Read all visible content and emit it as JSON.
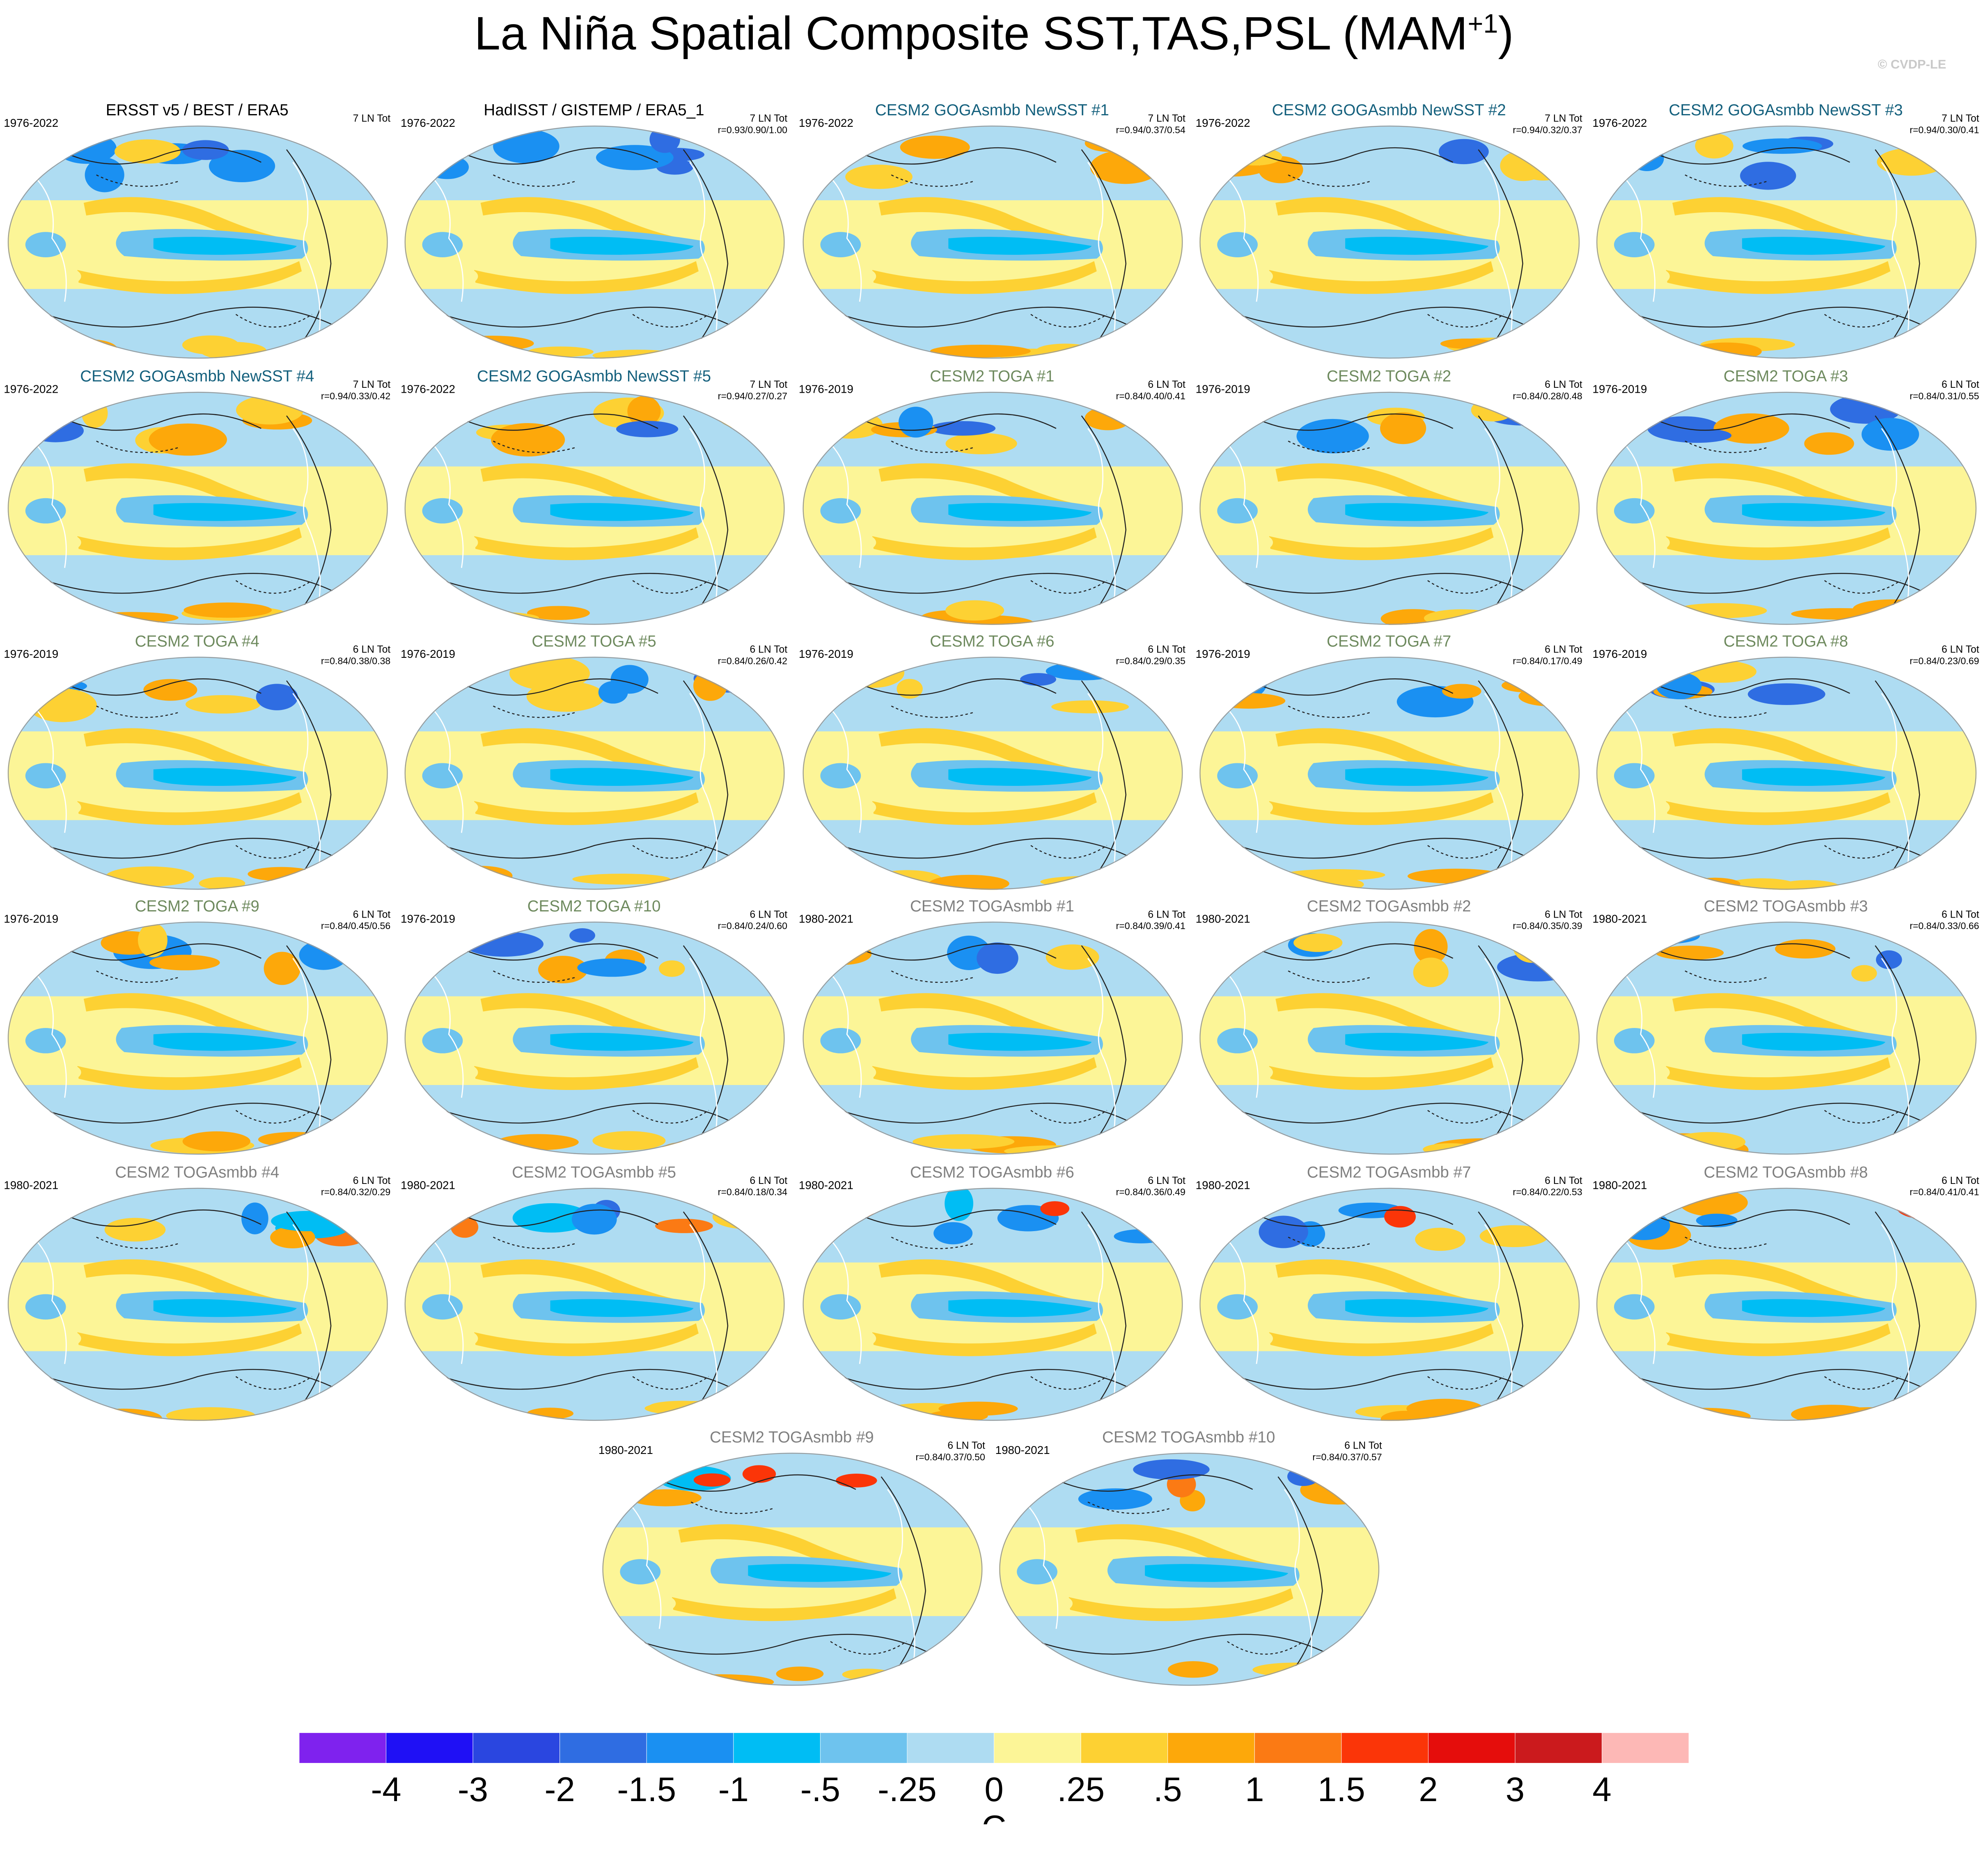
{
  "title": {
    "main": "La Niña Spatial Composite SST,TAS,PSL (MAM",
    "sup": "+1",
    "close": ")"
  },
  "credit": "© CVDP-LE",
  "panels": [
    {
      "title": "ERSST v5 / BEST / ERA5",
      "color": "#000000",
      "period": "1976-2022",
      "ntot": "7 LN Tot",
      "r": ""
    },
    {
      "title": "HadISST / GISTEMP / ERA5_1",
      "color": "#000000",
      "period": "1976-2022",
      "ntot": "7 LN Tot",
      "r": "r=0.93/0.90/1.00"
    },
    {
      "title": "CESM2 GOGAsmbb NewSST #1",
      "color": "#14607d",
      "period": "1976-2022",
      "ntot": "7 LN Tot",
      "r": "r=0.94/0.37/0.54"
    },
    {
      "title": "CESM2 GOGAsmbb NewSST #2",
      "color": "#14607d",
      "period": "1976-2022",
      "ntot": "7 LN Tot",
      "r": "r=0.94/0.32/0.37"
    },
    {
      "title": "CESM2 GOGAsmbb NewSST #3",
      "color": "#14607d",
      "period": "1976-2022",
      "ntot": "7 LN Tot",
      "r": "r=0.94/0.30/0.41"
    },
    {
      "title": "CESM2 GOGAsmbb NewSST #4",
      "color": "#14607d",
      "period": "1976-2022",
      "ntot": "7 LN Tot",
      "r": "r=0.94/0.33/0.42"
    },
    {
      "title": "CESM2 GOGAsmbb NewSST #5",
      "color": "#14607d",
      "period": "1976-2022",
      "ntot": "7 LN Tot",
      "r": "r=0.94/0.27/0.27"
    },
    {
      "title": "CESM2 TOGA #1",
      "color": "#6e8a5e",
      "period": "1976-2019",
      "ntot": "6 LN Tot",
      "r": "r=0.84/0.40/0.41"
    },
    {
      "title": "CESM2 TOGA #2",
      "color": "#6e8a5e",
      "period": "1976-2019",
      "ntot": "6 LN Tot",
      "r": "r=0.84/0.28/0.48"
    },
    {
      "title": "CESM2 TOGA #3",
      "color": "#6e8a5e",
      "period": "1976-2019",
      "ntot": "6 LN Tot",
      "r": "r=0.84/0.31/0.55"
    },
    {
      "title": "CESM2 TOGA #4",
      "color": "#6e8a5e",
      "period": "1976-2019",
      "ntot": "6 LN Tot",
      "r": "r=0.84/0.38/0.38"
    },
    {
      "title": "CESM2 TOGA #5",
      "color": "#6e8a5e",
      "period": "1976-2019",
      "ntot": "6 LN Tot",
      "r": "r=0.84/0.26/0.42"
    },
    {
      "title": "CESM2 TOGA #6",
      "color": "#6e8a5e",
      "period": "1976-2019",
      "ntot": "6 LN Tot",
      "r": "r=0.84/0.29/0.35"
    },
    {
      "title": "CESM2 TOGA #7",
      "color": "#6e8a5e",
      "period": "1976-2019",
      "ntot": "6 LN Tot",
      "r": "r=0.84/0.17/0.49"
    },
    {
      "title": "CESM2 TOGA #8",
      "color": "#6e8a5e",
      "period": "1976-2019",
      "ntot": "6 LN Tot",
      "r": "r=0.84/0.23/0.69"
    },
    {
      "title": "CESM2 TOGA #9",
      "color": "#6e8a5e",
      "period": "1976-2019",
      "ntot": "6 LN Tot",
      "r": "r=0.84/0.45/0.56"
    },
    {
      "title": "CESM2 TOGA #10",
      "color": "#6e8a5e",
      "period": "1976-2019",
      "ntot": "6 LN Tot",
      "r": "r=0.84/0.24/0.60"
    },
    {
      "title": "CESM2 TOGAsmbb #1",
      "color": "#808080",
      "period": "1980-2021",
      "ntot": "6 LN Tot",
      "r": "r=0.84/0.39/0.41"
    },
    {
      "title": "CESM2 TOGAsmbb #2",
      "color": "#808080",
      "period": "1980-2021",
      "ntot": "6 LN Tot",
      "r": "r=0.84/0.35/0.39"
    },
    {
      "title": "CESM2 TOGAsmbb #3",
      "color": "#808080",
      "period": "1980-2021",
      "ntot": "6 LN Tot",
      "r": "r=0.84/0.33/0.66"
    },
    {
      "title": "CESM2 TOGAsmbb #4",
      "color": "#808080",
      "period": "1980-2021",
      "ntot": "6 LN Tot",
      "r": "r=0.84/0.32/0.29"
    },
    {
      "title": "CESM2 TOGAsmbb #5",
      "color": "#808080",
      "period": "1980-2021",
      "ntot": "6 LN Tot",
      "r": "r=0.84/0.18/0.34"
    },
    {
      "title": "CESM2 TOGAsmbb #6",
      "color": "#808080",
      "period": "1980-2021",
      "ntot": "6 LN Tot",
      "r": "r=0.84/0.36/0.49"
    },
    {
      "title": "CESM2 TOGAsmbb #7",
      "color": "#808080",
      "period": "1980-2021",
      "ntot": "6 LN Tot",
      "r": "r=0.84/0.22/0.53"
    },
    {
      "title": "CESM2 TOGAsmbb #8",
      "color": "#808080",
      "period": "1980-2021",
      "ntot": "6 LN Tot",
      "r": "r=0.84/0.41/0.41"
    },
    {
      "title": "CESM2 TOGAsmbb #9",
      "color": "#808080",
      "period": "1980-2021",
      "ntot": "6 LN Tot",
      "r": "r=0.84/0.37/0.50"
    },
    {
      "title": "CESM2 TOGAsmbb #10",
      "color": "#808080",
      "period": "1980-2021",
      "ntot": "6 LN Tot",
      "r": "r=0.84/0.37/0.57"
    }
  ],
  "colorbar": {
    "unit": "C",
    "labels": [
      "-4",
      "-3",
      "-2",
      "-1.5",
      "-1",
      "-.5",
      "-.25",
      "0",
      ".25",
      ".5",
      "1",
      "1.5",
      "2",
      "3",
      "4"
    ],
    "colors": [
      "#7f22ee",
      "#1f10f5",
      "#2a46e0",
      "#2f6de2",
      "#1a90f2",
      "#00bdf4",
      "#6ec3ee",
      "#aedcf2",
      "#fcf597",
      "#fdd133",
      "#fda80a",
      "#fb7a14",
      "#fb3508",
      "#e50d0c",
      "#cb1a1d",
      "#fdb8b6"
    ]
  },
  "chart_data": {
    "type": "heatmap",
    "title": "La Niña Spatial Composite SST,TAS,PSL (MAM+1)",
    "variables": [
      "SST",
      "TAS",
      "PSL"
    ],
    "season": "MAM+1",
    "unit": "C",
    "contour_levels": [
      -4,
      -3,
      -2,
      -1.5,
      -1,
      -0.5,
      -0.25,
      0,
      0.25,
      0.5,
      1,
      1.5,
      2,
      3,
      4
    ],
    "panel_count": 27,
    "field_patterns": {
      "base": "equatorial Pacific cold tongue (about -0.5 to -1 C) flanked by warm horseshoe (+0.25 to +0.5 C)",
      "observations": "weak high-latitude anomalies",
      "GOGAsmbb": "warm Northern Hemisphere high-latitude land anomalies",
      "TOGA": "mixed warm/cold Eurasian anomalies, warm Antarctic margin",
      "TOGAsmbb": "warm Eurasian/Siberian anomalies, cold North America in some members"
    }
  }
}
